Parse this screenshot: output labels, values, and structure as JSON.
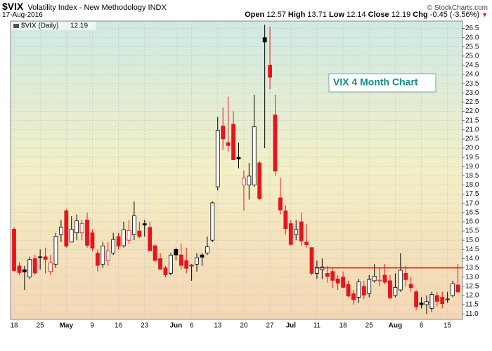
{
  "chart_data": {
    "type": "candlestick",
    "title": "$VIX",
    "subtitle": "Volatility Index - New Methodology INDX",
    "date": "17-Aug-2016",
    "source": "© StockCharts.com",
    "quote_labels": [
      "Open",
      "High",
      "Low",
      "Close",
      "Chg"
    ],
    "change": -0.45,
    "change_pct": {
      "value": -3.56,
      "label": "(-3.56%)"
    },
    "annotation": "VIX 4 Month Chart",
    "hline": {
      "value": 13.5,
      "color": "#e8141b"
    },
    "up_color": "#000000",
    "down_color": "#e8141b",
    "grid": true,
    "categories": [
      "18",
      null,
      null,
      null,
      null,
      "25",
      null,
      null,
      null,
      null,
      "May",
      null,
      null,
      null,
      null,
      "9",
      null,
      null,
      null,
      null,
      "16",
      null,
      null,
      null,
      null,
      "23",
      null,
      null,
      null,
      null,
      null,
      "Jun",
      null,
      null,
      "6",
      null,
      null,
      null,
      null,
      "13",
      null,
      null,
      null,
      null,
      "20",
      null,
      null,
      null,
      null,
      "27",
      null,
      null,
      null,
      "Jul",
      null,
      null,
      null,
      null,
      "11",
      null,
      null,
      null,
      null,
      "18",
      null,
      null,
      null,
      null,
      "25",
      null,
      null,
      null,
      null,
      "Aug",
      null,
      null,
      null,
      null,
      "8",
      null,
      null,
      null,
      null,
      "15",
      null,
      null
    ],
    "series": [
      {
        "name": "$VIX (Daily)",
        "open": [
          15.6,
          13.6,
          13.4,
          13.0,
          14.0,
          14.1,
          14.1,
          13.3,
          13.7,
          15.3,
          16.6,
          14.9,
          15.4,
          15.4,
          16.1,
          15.4,
          14.3,
          13.7,
          13.9,
          14.3,
          15.2,
          14.7,
          15.0,
          15.3,
          15.5,
          15.9,
          15.7,
          14.7,
          14.0,
          13.5,
          13.2,
          14.5,
          14.2,
          13.9,
          13.6,
          13.7,
          14.2,
          14.3,
          15.0,
          17.9,
          21.2,
          20.3,
          21.3,
          19.5,
          18.0,
          18.0,
          18.0,
          19.2,
          26.0,
          24.5,
          21.8,
          17.3,
          16.6,
          15.9,
          15.3,
          16.0,
          14.9,
          14.6,
          13.2,
          13.4,
          13.2,
          13.3,
          12.9,
          13.0,
          12.6,
          12.1,
          11.9,
          12.5,
          12.1,
          12.8,
          12.8,
          13.1,
          12.8,
          12.0,
          12.3,
          13.2,
          12.6,
          12.2,
          11.6,
          11.5,
          11.3,
          12.0,
          11.9,
          11.8,
          12.0,
          12.57
        ],
        "high": [
          15.7,
          13.8,
          13.6,
          14.1,
          14.2,
          14.5,
          14.6,
          14.2,
          15.4,
          16.1,
          16.7,
          16.3,
          16.4,
          16.1,
          16.5,
          15.6,
          14.5,
          14.9,
          14.9,
          15.4,
          15.4,
          16.0,
          16.1,
          17.1,
          16.0,
          16.1,
          16.0,
          14.8,
          14.3,
          13.6,
          14.3,
          14.6,
          14.8,
          14.6,
          13.7,
          14.3,
          14.3,
          15.2,
          17.1,
          21.7,
          22.2,
          22.8,
          22.0,
          20.3,
          18.8,
          19.2,
          22.9,
          19.3,
          26.7,
          26.6,
          22.9,
          18.4,
          16.9,
          16.1,
          16.1,
          16.5,
          15.9,
          14.6,
          13.9,
          14.0,
          13.6,
          13.5,
          13.1,
          13.3,
          12.8,
          12.3,
          12.9,
          12.8,
          13.1,
          13.7,
          13.5,
          13.7,
          13.1,
          13.2,
          14.3,
          13.6,
          13.0,
          12.3,
          11.9,
          12.0,
          12.2,
          12.2,
          12.2,
          12.2,
          12.8,
          13.71
        ],
        "low": [
          13.3,
          13.1,
          12.3,
          12.9,
          13.1,
          13.4,
          13.2,
          13.1,
          13.5,
          14.9,
          14.6,
          14.9,
          15.0,
          15.0,
          14.6,
          14.4,
          13.3,
          13.5,
          13.6,
          14.2,
          14.5,
          14.6,
          14.8,
          15.0,
          15.1,
          15.2,
          14.4,
          13.8,
          13.4,
          13.0,
          13.1,
          13.9,
          13.4,
          13.2,
          12.8,
          13.3,
          13.6,
          14.2,
          14.9,
          17.7,
          19.9,
          19.8,
          19.4,
          18.9,
          16.6,
          17.2,
          17.9,
          17.2,
          20.0,
          23.2,
          18.5,
          16.4,
          15.3,
          14.7,
          15.0,
          14.7,
          14.6,
          13.1,
          12.9,
          12.9,
          12.7,
          12.4,
          12.3,
          12.4,
          11.9,
          11.5,
          11.6,
          11.8,
          11.9,
          12.7,
          12.5,
          12.6,
          11.8,
          11.9,
          12.2,
          12.5,
          12.2,
          11.2,
          11.3,
          11.0,
          11.1,
          11.4,
          11.3,
          11.6,
          11.9,
          12.14
        ],
        "close": [
          13.35,
          13.24,
          13.28,
          13.95,
          13.22,
          14.08,
          13.96,
          13.77,
          15.22,
          15.7,
          14.68,
          15.6,
          16.05,
          15.91,
          14.72,
          14.57,
          13.63,
          14.69,
          14.41,
          15.04,
          14.68,
          15.57,
          15.53,
          16.33,
          15.2,
          15.82,
          14.42,
          13.9,
          13.43,
          13.12,
          14.19,
          14.2,
          13.63,
          13.47,
          13.65,
          14.05,
          14.08,
          14.64,
          17.03,
          20.97,
          20.5,
          20.14,
          19.37,
          19.41,
          18.37,
          18.48,
          21.17,
          17.25,
          25.76,
          23.85,
          18.75,
          16.64,
          15.63,
          14.77,
          15.58,
          14.96,
          14.76,
          13.2,
          13.54,
          13.55,
          13.04,
          12.82,
          12.67,
          12.44,
          11.97,
          11.77,
          12.74,
          12.02,
          12.87,
          13.05,
          12.83,
          12.72,
          11.87,
          12.44,
          13.37,
          12.86,
          12.42,
          11.39,
          11.5,
          11.66,
          12.05,
          11.68,
          11.55,
          11.81,
          12.64,
          12.19
        ]
      }
    ],
    "ylim": [
      10.7,
      26.9
    ],
    "yticks": [
      {
        "value": 11,
        "label": "11.0"
      },
      11.5,
      {
        "value": 12,
        "label": "12.0"
      },
      12.5,
      {
        "value": 13,
        "label": "13.0"
      },
      13.5,
      {
        "value": 14,
        "label": "14.0"
      },
      14.5,
      {
        "value": 15,
        "label": "15.0"
      },
      15.5,
      {
        "value": 16,
        "label": "16.0"
      },
      16.5,
      {
        "value": 17,
        "label": "17.0"
      },
      17.5,
      {
        "value": 18,
        "label": "18.0"
      },
      18.5,
      {
        "value": 19,
        "label": "19.0"
      },
      19.5,
      {
        "value": 20,
        "label": "20.0"
      },
      20.5,
      {
        "value": 21,
        "label": "21.0"
      },
      21.5,
      {
        "value": 22,
        "label": "22.0"
      },
      22.5,
      {
        "value": 23,
        "label": "23.0"
      },
      23.5,
      {
        "value": 24,
        "label": "24.0"
      },
      24.5,
      {
        "value": 25,
        "label": "25.0"
      },
      25.5,
      {
        "value": 26,
        "label": "26.0"
      },
      26.5
    ]
  }
}
